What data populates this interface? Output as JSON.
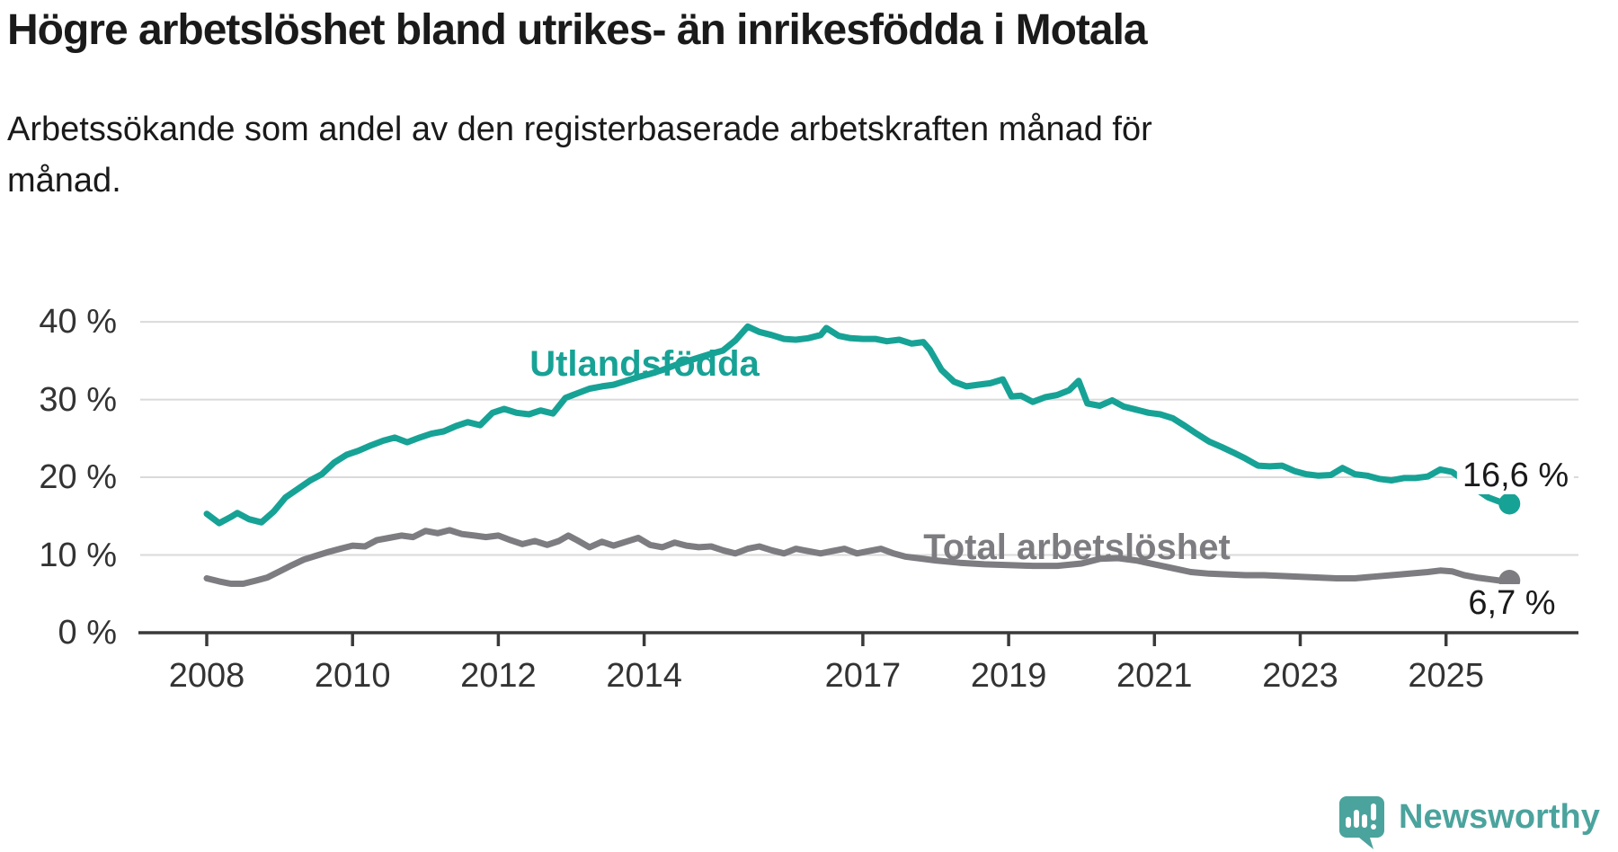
{
  "header": {
    "title": "Högre arbetslöshet bland utrikes- än inrikesfödda i Motala",
    "subtitle": "Arbetssökande som andel av den registerbaserade arbetskraften månad för månad."
  },
  "chart_data": {
    "type": "line",
    "title": "Högre arbetslöshet bland utrikes- än inrikesfödda i Motala",
    "unit": "%",
    "grid": "horizontal",
    "x_axis": {
      "range": [
        2008,
        2026
      ],
      "ticks": [
        {
          "year": 2008,
          "label": "2008"
        },
        {
          "year": 2010,
          "label": "2010"
        },
        {
          "year": 2012,
          "label": "2012"
        },
        {
          "year": 2014,
          "label": "2014"
        },
        {
          "year": 2017,
          "label": "2017"
        },
        {
          "year": 2019,
          "label": "2019"
        },
        {
          "year": 2021,
          "label": "2021"
        },
        {
          "year": 2023,
          "label": "2023"
        },
        {
          "year": 2025,
          "label": "2025"
        }
      ]
    },
    "y_axis": {
      "range": [
        0,
        40
      ],
      "ticks": [
        {
          "value": 0,
          "label": "0 %"
        },
        {
          "value": 10,
          "label": "10 %"
        },
        {
          "value": 20,
          "label": "20 %"
        },
        {
          "value": 30,
          "label": "30 %"
        },
        {
          "value": 40,
          "label": "40 %"
        }
      ]
    },
    "series": [
      {
        "name": "Utlandsfödda",
        "label": "Utlandsfödda",
        "color": "#17A296",
        "end_label": "16,6 %",
        "end_value": 16.6,
        "points": [
          [
            2008.0,
            15.3
          ],
          [
            2008.17,
            14.1
          ],
          [
            2008.33,
            14.9
          ],
          [
            2008.42,
            15.4
          ],
          [
            2008.58,
            14.6
          ],
          [
            2008.75,
            14.2
          ],
          [
            2008.92,
            15.6
          ],
          [
            2009.08,
            17.4
          ],
          [
            2009.25,
            18.5
          ],
          [
            2009.42,
            19.6
          ],
          [
            2009.58,
            20.4
          ],
          [
            2009.75,
            21.9
          ],
          [
            2009.92,
            22.9
          ],
          [
            2010.08,
            23.4
          ],
          [
            2010.25,
            24.1
          ],
          [
            2010.42,
            24.7
          ],
          [
            2010.58,
            25.1
          ],
          [
            2010.75,
            24.5
          ],
          [
            2010.92,
            25.1
          ],
          [
            2011.08,
            25.6
          ],
          [
            2011.25,
            25.9
          ],
          [
            2011.42,
            26.6
          ],
          [
            2011.58,
            27.1
          ],
          [
            2011.75,
            26.7
          ],
          [
            2011.92,
            28.3
          ],
          [
            2012.08,
            28.8
          ],
          [
            2012.25,
            28.3
          ],
          [
            2012.42,
            28.1
          ],
          [
            2012.58,
            28.6
          ],
          [
            2012.75,
            28.2
          ],
          [
            2012.92,
            30.2
          ],
          [
            2013.08,
            30.8
          ],
          [
            2013.25,
            31.4
          ],
          [
            2013.42,
            31.7
          ],
          [
            2013.58,
            31.9
          ],
          [
            2013.75,
            32.4
          ],
          [
            2013.92,
            32.9
          ],
          [
            2014.08,
            33.3
          ],
          [
            2014.25,
            33.8
          ],
          [
            2014.42,
            34.4
          ],
          [
            2014.58,
            34.9
          ],
          [
            2014.75,
            35.4
          ],
          [
            2014.92,
            35.9
          ],
          [
            2015.08,
            36.3
          ],
          [
            2015.25,
            37.6
          ],
          [
            2015.42,
            39.4
          ],
          [
            2015.58,
            38.7
          ],
          [
            2015.75,
            38.3
          ],
          [
            2015.92,
            37.8
          ],
          [
            2016.08,
            37.7
          ],
          [
            2016.25,
            37.9
          ],
          [
            2016.42,
            38.3
          ],
          [
            2016.5,
            39.2
          ],
          [
            2016.67,
            38.2
          ],
          [
            2016.83,
            37.9
          ],
          [
            2017.0,
            37.8
          ],
          [
            2017.17,
            37.8
          ],
          [
            2017.33,
            37.5
          ],
          [
            2017.5,
            37.7
          ],
          [
            2017.67,
            37.2
          ],
          [
            2017.83,
            37.4
          ],
          [
            2017.92,
            36.4
          ],
          [
            2018.08,
            33.8
          ],
          [
            2018.25,
            32.3
          ],
          [
            2018.42,
            31.7
          ],
          [
            2018.58,
            31.9
          ],
          [
            2018.75,
            32.1
          ],
          [
            2018.92,
            32.6
          ],
          [
            2019.04,
            30.4
          ],
          [
            2019.17,
            30.5
          ],
          [
            2019.33,
            29.7
          ],
          [
            2019.5,
            30.3
          ],
          [
            2019.67,
            30.6
          ],
          [
            2019.83,
            31.2
          ],
          [
            2019.96,
            32.4
          ],
          [
            2020.08,
            29.5
          ],
          [
            2020.25,
            29.2
          ],
          [
            2020.42,
            29.9
          ],
          [
            2020.58,
            29.1
          ],
          [
            2020.75,
            28.7
          ],
          [
            2020.92,
            28.3
          ],
          [
            2021.08,
            28.1
          ],
          [
            2021.25,
            27.6
          ],
          [
            2021.42,
            26.6
          ],
          [
            2021.58,
            25.6
          ],
          [
            2021.75,
            24.6
          ],
          [
            2021.92,
            23.9
          ],
          [
            2022.08,
            23.2
          ],
          [
            2022.25,
            22.4
          ],
          [
            2022.42,
            21.5
          ],
          [
            2022.58,
            21.4
          ],
          [
            2022.75,
            21.5
          ],
          [
            2022.92,
            20.8
          ],
          [
            2023.08,
            20.4
          ],
          [
            2023.25,
            20.2
          ],
          [
            2023.42,
            20.3
          ],
          [
            2023.58,
            21.2
          ],
          [
            2023.75,
            20.4
          ],
          [
            2023.92,
            20.2
          ],
          [
            2024.08,
            19.8
          ],
          [
            2024.25,
            19.6
          ],
          [
            2024.42,
            19.9
          ],
          [
            2024.58,
            19.9
          ],
          [
            2024.75,
            20.1
          ],
          [
            2024.92,
            21.0
          ],
          [
            2025.08,
            20.7
          ],
          [
            2025.25,
            19.6
          ],
          [
            2025.42,
            18.4
          ],
          [
            2025.58,
            17.4
          ],
          [
            2025.75,
            16.8
          ],
          [
            2025.87,
            16.6
          ]
        ]
      },
      {
        "name": "Total arbetslöshet",
        "label": "Total arbetslöshet",
        "color": "#7D7D81",
        "end_label": "6,7 %",
        "end_value": 6.7,
        "points": [
          [
            2008.0,
            7.0
          ],
          [
            2008.17,
            6.6
          ],
          [
            2008.33,
            6.3
          ],
          [
            2008.5,
            6.3
          ],
          [
            2008.67,
            6.7
          ],
          [
            2008.83,
            7.1
          ],
          [
            2009.0,
            7.9
          ],
          [
            2009.17,
            8.7
          ],
          [
            2009.33,
            9.4
          ],
          [
            2009.5,
            9.9
          ],
          [
            2009.67,
            10.4
          ],
          [
            2009.83,
            10.8
          ],
          [
            2010.0,
            11.2
          ],
          [
            2010.17,
            11.1
          ],
          [
            2010.33,
            11.9
          ],
          [
            2010.5,
            12.2
          ],
          [
            2010.67,
            12.5
          ],
          [
            2010.83,
            12.3
          ],
          [
            2011.0,
            13.1
          ],
          [
            2011.17,
            12.8
          ],
          [
            2011.33,
            13.2
          ],
          [
            2011.5,
            12.7
          ],
          [
            2011.67,
            12.5
          ],
          [
            2011.83,
            12.3
          ],
          [
            2012.0,
            12.5
          ],
          [
            2012.17,
            11.9
          ],
          [
            2012.33,
            11.4
          ],
          [
            2012.5,
            11.8
          ],
          [
            2012.67,
            11.3
          ],
          [
            2012.83,
            11.8
          ],
          [
            2012.96,
            12.5
          ],
          [
            2013.08,
            11.9
          ],
          [
            2013.25,
            11.0
          ],
          [
            2013.42,
            11.7
          ],
          [
            2013.58,
            11.2
          ],
          [
            2013.75,
            11.7
          ],
          [
            2013.92,
            12.2
          ],
          [
            2014.08,
            11.3
          ],
          [
            2014.25,
            11.0
          ],
          [
            2014.42,
            11.6
          ],
          [
            2014.58,
            11.2
          ],
          [
            2014.75,
            11.0
          ],
          [
            2014.92,
            11.1
          ],
          [
            2015.08,
            10.6
          ],
          [
            2015.25,
            10.2
          ],
          [
            2015.42,
            10.8
          ],
          [
            2015.58,
            11.1
          ],
          [
            2015.75,
            10.6
          ],
          [
            2015.92,
            10.2
          ],
          [
            2016.08,
            10.8
          ],
          [
            2016.25,
            10.5
          ],
          [
            2016.42,
            10.2
          ],
          [
            2016.58,
            10.5
          ],
          [
            2016.75,
            10.8
          ],
          [
            2016.92,
            10.2
          ],
          [
            2017.08,
            10.5
          ],
          [
            2017.25,
            10.8
          ],
          [
            2017.42,
            10.2
          ],
          [
            2017.58,
            9.8
          ],
          [
            2017.75,
            9.6
          ],
          [
            2018.0,
            9.3
          ],
          [
            2018.33,
            9.0
          ],
          [
            2018.67,
            8.8
          ],
          [
            2019.0,
            8.7
          ],
          [
            2019.33,
            8.6
          ],
          [
            2019.67,
            8.6
          ],
          [
            2020.0,
            8.9
          ],
          [
            2020.25,
            9.5
          ],
          [
            2020.5,
            9.6
          ],
          [
            2020.75,
            9.3
          ],
          [
            2021.0,
            8.8
          ],
          [
            2021.25,
            8.3
          ],
          [
            2021.5,
            7.8
          ],
          [
            2021.75,
            7.6
          ],
          [
            2022.0,
            7.5
          ],
          [
            2022.25,
            7.4
          ],
          [
            2022.5,
            7.4
          ],
          [
            2022.75,
            7.3
          ],
          [
            2023.0,
            7.2
          ],
          [
            2023.25,
            7.1
          ],
          [
            2023.5,
            7.0
          ],
          [
            2023.75,
            7.0
          ],
          [
            2024.0,
            7.2
          ],
          [
            2024.25,
            7.4
          ],
          [
            2024.5,
            7.6
          ],
          [
            2024.75,
            7.8
          ],
          [
            2024.92,
            8.0
          ],
          [
            2025.08,
            7.9
          ],
          [
            2025.25,
            7.4
          ],
          [
            2025.42,
            7.1
          ],
          [
            2025.58,
            6.9
          ],
          [
            2025.75,
            6.7
          ],
          [
            2025.87,
            6.7
          ]
        ]
      }
    ],
    "legend_position": "inline-labels"
  },
  "style": {
    "gridline_color": "#DADADA",
    "axis_color": "#3A3A3A",
    "text_color": "#333333"
  },
  "footer": {
    "logo_text": "Newsworthy",
    "logo_color": "#4BA39D"
  }
}
